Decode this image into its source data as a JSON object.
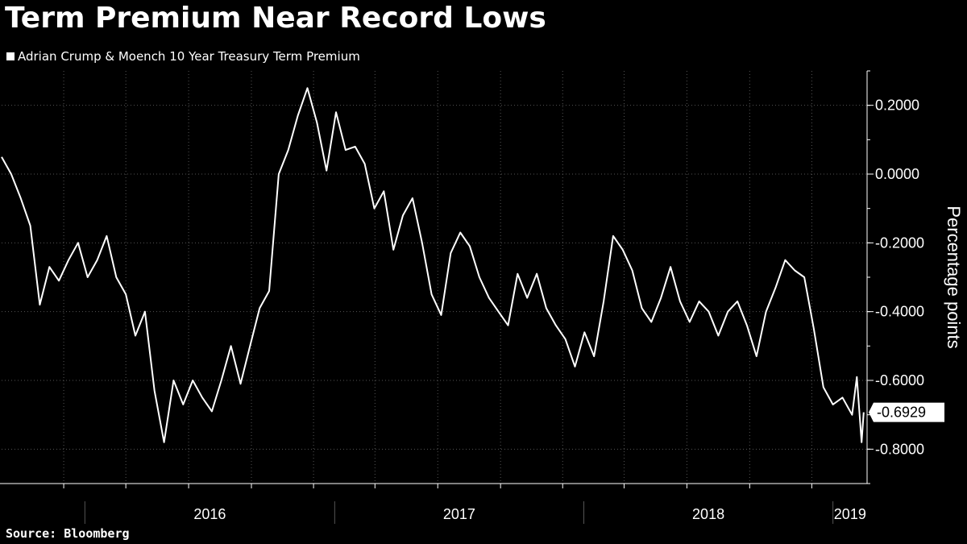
{
  "title": "Term Premium Near Record Lows",
  "source": "Source: Bloomberg",
  "colors": {
    "background": "#000000",
    "line": "#ffffff",
    "grid": "#555555",
    "text": "#ffffff"
  },
  "chart_data": {
    "type": "line",
    "title": "Term Premium Near Record Lows",
    "ylabel": "Percentage points",
    "xlabel": "",
    "ylim": [
      -0.9,
      0.3
    ],
    "y_ticks": [
      0.2,
      0.0,
      -0.2,
      -0.4,
      -0.6,
      -0.8
    ],
    "y_tick_labels": [
      "0.2000",
      "0.0000",
      "-0.2000",
      "-0.4000",
      "-0.6000",
      "-0.8000"
    ],
    "x_tick_labels": [
      "2016",
      "2017",
      "2018",
      "2019"
    ],
    "xlim": [
      "2015-09-01",
      "2019-02-20"
    ],
    "grid": true,
    "legend_position": "top-left",
    "last_value_label": "-0.6929",
    "series": [
      {
        "name": "Adrian Crump & Moench 10 Year Treasury Term Premium",
        "points": [
          [
            "2015-09-01",
            0.05
          ],
          [
            "2015-09-15",
            0.0
          ],
          [
            "2015-09-29",
            -0.07
          ],
          [
            "2015-10-13",
            -0.15
          ],
          [
            "2015-10-27",
            -0.38
          ],
          [
            "2015-11-10",
            -0.27
          ],
          [
            "2015-11-24",
            -0.31
          ],
          [
            "2015-12-08",
            -0.25
          ],
          [
            "2015-12-22",
            -0.2
          ],
          [
            "2016-01-05",
            -0.3
          ],
          [
            "2016-01-19",
            -0.25
          ],
          [
            "2016-02-02",
            -0.18
          ],
          [
            "2016-02-16",
            -0.3
          ],
          [
            "2016-03-01",
            -0.35
          ],
          [
            "2016-03-15",
            -0.47
          ],
          [
            "2016-03-29",
            -0.4
          ],
          [
            "2016-04-12",
            -0.63
          ],
          [
            "2016-04-26",
            -0.78
          ],
          [
            "2016-05-10",
            -0.6
          ],
          [
            "2016-05-24",
            -0.67
          ],
          [
            "2016-06-07",
            -0.6
          ],
          [
            "2016-06-21",
            -0.65
          ],
          [
            "2016-07-05",
            -0.69
          ],
          [
            "2016-07-19",
            -0.6
          ],
          [
            "2016-08-02",
            -0.5
          ],
          [
            "2016-08-16",
            -0.61
          ],
          [
            "2016-08-30",
            -0.5
          ],
          [
            "2016-09-13",
            -0.39
          ],
          [
            "2016-09-27",
            -0.34
          ],
          [
            "2016-10-11",
            0.0
          ],
          [
            "2016-10-25",
            0.07
          ],
          [
            "2016-11-08",
            0.17
          ],
          [
            "2016-11-22",
            0.25
          ],
          [
            "2016-12-06",
            0.15
          ],
          [
            "2016-12-20",
            0.01
          ],
          [
            "2017-01-03",
            0.18
          ],
          [
            "2017-01-17",
            0.07
          ],
          [
            "2017-01-31",
            0.08
          ],
          [
            "2017-02-14",
            0.03
          ],
          [
            "2017-02-28",
            -0.1
          ],
          [
            "2017-03-14",
            -0.05
          ],
          [
            "2017-03-28",
            -0.22
          ],
          [
            "2017-04-11",
            -0.12
          ],
          [
            "2017-04-25",
            -0.07
          ],
          [
            "2017-05-09",
            -0.2
          ],
          [
            "2017-05-23",
            -0.35
          ],
          [
            "2017-06-06",
            -0.41
          ],
          [
            "2017-06-20",
            -0.23
          ],
          [
            "2017-07-04",
            -0.17
          ],
          [
            "2017-07-18",
            -0.21
          ],
          [
            "2017-08-01",
            -0.3
          ],
          [
            "2017-08-15",
            -0.36
          ],
          [
            "2017-08-29",
            -0.4
          ],
          [
            "2017-09-12",
            -0.44
          ],
          [
            "2017-09-26",
            -0.29
          ],
          [
            "2017-10-10",
            -0.36
          ],
          [
            "2017-10-24",
            -0.29
          ],
          [
            "2017-11-07",
            -0.39
          ],
          [
            "2017-11-21",
            -0.44
          ],
          [
            "2017-12-05",
            -0.48
          ],
          [
            "2017-12-19",
            -0.56
          ],
          [
            "2018-01-02",
            -0.46
          ],
          [
            "2018-01-16",
            -0.53
          ],
          [
            "2018-01-30",
            -0.37
          ],
          [
            "2018-02-13",
            -0.18
          ],
          [
            "2018-02-27",
            -0.22
          ],
          [
            "2018-03-13",
            -0.28
          ],
          [
            "2018-03-27",
            -0.39
          ],
          [
            "2018-04-10",
            -0.43
          ],
          [
            "2018-04-24",
            -0.36
          ],
          [
            "2018-05-08",
            -0.27
          ],
          [
            "2018-05-22",
            -0.37
          ],
          [
            "2018-06-05",
            -0.43
          ],
          [
            "2018-06-19",
            -0.37
          ],
          [
            "2018-07-03",
            -0.4
          ],
          [
            "2018-07-17",
            -0.47
          ],
          [
            "2018-07-31",
            -0.4
          ],
          [
            "2018-08-14",
            -0.37
          ],
          [
            "2018-08-28",
            -0.44
          ],
          [
            "2018-09-11",
            -0.53
          ],
          [
            "2018-09-25",
            -0.4
          ],
          [
            "2018-10-09",
            -0.33
          ],
          [
            "2018-10-23",
            -0.25
          ],
          [
            "2018-11-06",
            -0.28
          ],
          [
            "2018-11-20",
            -0.3
          ],
          [
            "2018-12-04",
            -0.45
          ],
          [
            "2018-12-18",
            -0.62
          ],
          [
            "2019-01-01",
            -0.67
          ],
          [
            "2019-01-15",
            -0.65
          ],
          [
            "2019-01-29",
            -0.7
          ],
          [
            "2019-02-05",
            -0.59
          ],
          [
            "2019-02-12",
            -0.78
          ],
          [
            "2019-02-15",
            -0.6929
          ]
        ]
      }
    ]
  }
}
